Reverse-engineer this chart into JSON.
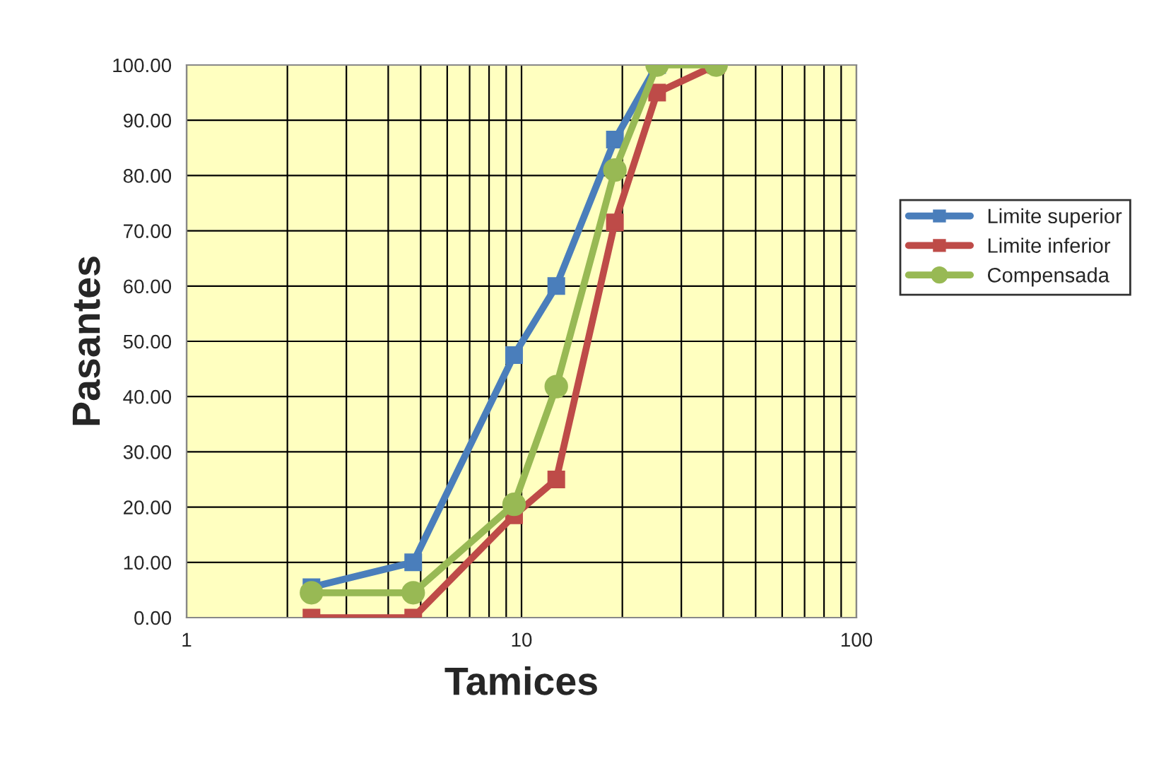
{
  "chart_data": {
    "type": "line",
    "xlabel": "Tamices",
    "ylabel": "Pasantes",
    "x": [
      2.36,
      4.75,
      9.5,
      12.7,
      19,
      25.4,
      38.1
    ],
    "series": [
      {
        "name": "Limite superior",
        "color": "#4a7ebb",
        "marker": "square",
        "values": [
          5.5,
          10,
          47.5,
          60,
          86.5,
          100,
          null
        ]
      },
      {
        "name": "Limite inferior",
        "color": "#be4b48",
        "marker": "square",
        "values": [
          0,
          0,
          18.5,
          25,
          71.5,
          95,
          100
        ]
      },
      {
        "name": "Compensada",
        "color": "#98b954",
        "marker": "circle",
        "values": [
          4.5,
          4.5,
          20.5,
          41.8,
          81,
          100,
          100
        ]
      }
    ],
    "log": "x",
    "xlim": [
      1,
      100
    ],
    "xticks": [
      1,
      10,
      100
    ],
    "ylim": [
      0,
      100
    ],
    "yticks": [
      {
        "value": 0,
        "label": "0.00"
      },
      {
        "value": 10,
        "label": "10.00"
      },
      {
        "value": 20,
        "label": "20.00"
      },
      {
        "value": 30,
        "label": "30.00"
      },
      {
        "value": 40,
        "label": "40.00"
      },
      {
        "value": 50,
        "label": "50.00"
      },
      {
        "value": 60,
        "label": "60.00"
      },
      {
        "value": 70,
        "label": "70.00"
      },
      {
        "value": 80,
        "label": "80.00"
      },
      {
        "value": 90,
        "label": "90.00"
      },
      {
        "value": 100,
        "label": "100.00"
      }
    ],
    "grid": true,
    "legend": "right",
    "line_style": "solid"
  }
}
